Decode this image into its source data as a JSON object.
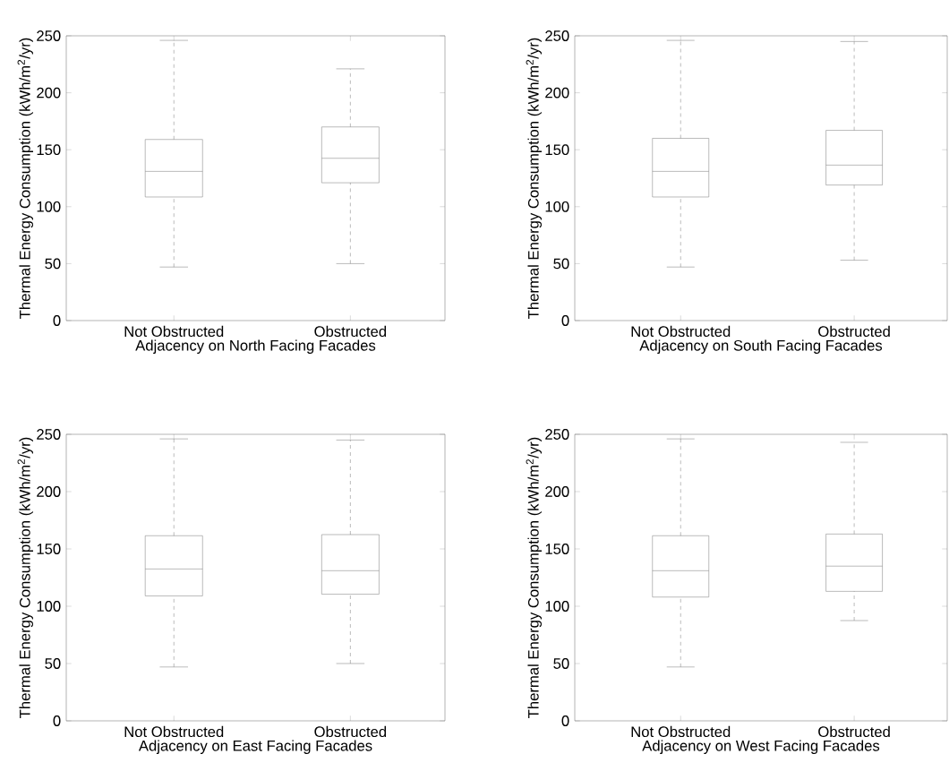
{
  "chart_data": [
    {
      "type": "box",
      "xlabel": "Adjacency on North Facing Facades",
      "ylabel": "Thermal Energy Consumption (kWh/m$^{2}$/yr)",
      "categories": [
        "Not Obstructed",
        "Obstructed"
      ],
      "color": "#7f7f7f",
      "ylim": [
        0,
        250
      ],
      "yticks": [
        0,
        50,
        100,
        150,
        200,
        250
      ],
      "boxes": [
        {
          "low": 47,
          "q1": 108.5,
          "median": 131,
          "q3": 159,
          "high": 246
        },
        {
          "low": 50,
          "q1": 121,
          "median": 142.5,
          "q3": 170,
          "high": 221
        }
      ]
    },
    {
      "type": "box",
      "xlabel": "Adjacency on South Facing Facades",
      "ylabel": "Thermal Energy Consumption (kWh/m$^{2}$/yr)",
      "categories": [
        "Not Obstructed",
        "Obstructed"
      ],
      "color": "#7f7f7f",
      "ylim": [
        0,
        250
      ],
      "yticks": [
        0,
        50,
        100,
        150,
        200,
        250
      ],
      "boxes": [
        {
          "low": 47,
          "q1": 108.5,
          "median": 131,
          "q3": 160,
          "high": 246
        },
        {
          "low": 53,
          "q1": 119,
          "median": 136.5,
          "q3": 167,
          "high": 245
        }
      ]
    },
    {
      "type": "box",
      "xlabel": "Adjacency on East Facing Facades",
      "ylabel": "Thermal Energy Consumption (kWh/m$^{2}$/yr)",
      "categories": [
        "Not Obstructed",
        "Obstructed"
      ],
      "color": "#7f7f7f",
      "ylim": [
        0,
        250
      ],
      "yticks": [
        0,
        50,
        100,
        150,
        200,
        250
      ],
      "boxes": [
        {
          "low": 47,
          "q1": 109,
          "median": 132.5,
          "q3": 161.5,
          "high": 246
        },
        {
          "low": 50,
          "q1": 110.5,
          "median": 131,
          "q3": 162.5,
          "high": 245
        }
      ]
    },
    {
      "type": "box",
      "xlabel": "Adjacency on West Facing Facades",
      "ylabel": "Thermal Energy Consumption (kWh/m$^{2}$/yr)",
      "categories": [
        "Not Obstructed",
        "Obstructed"
      ],
      "color": "#7f7f7f",
      "ylim": [
        0,
        250
      ],
      "yticks": [
        0,
        50,
        100,
        150,
        200,
        250
      ],
      "boxes": [
        {
          "low": 47,
          "q1": 108,
          "median": 131,
          "q3": 161.5,
          "high": 246
        },
        {
          "low": 87.5,
          "q1": 113,
          "median": 135,
          "q3": 163,
          "high": 243
        }
      ]
    }
  ]
}
